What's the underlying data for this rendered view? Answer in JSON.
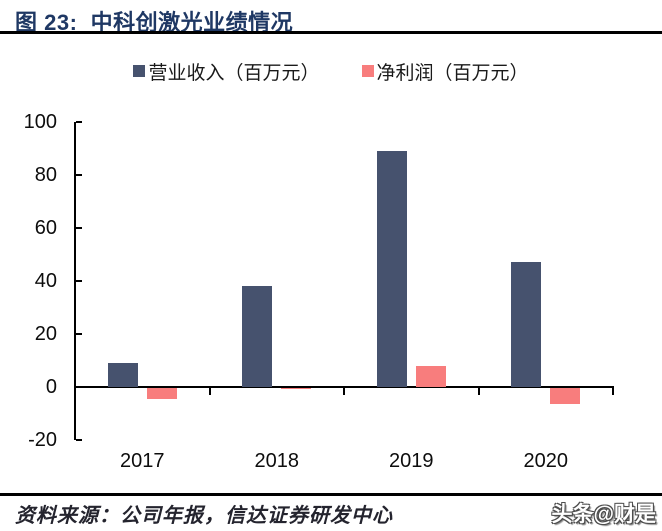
{
  "header": {
    "title": "图 23:  中科创激光业绩情况"
  },
  "chart_data": {
    "type": "bar",
    "title": "",
    "categories": [
      "2017",
      "2018",
      "2019",
      "2020"
    ],
    "series": [
      {
        "key": "revenue",
        "name": "营业收入（百万元）",
        "color": "#46526E",
        "values": [
          9,
          38,
          89,
          47
        ]
      },
      {
        "key": "net-profit",
        "name": "净利润（百万元）",
        "color": "#F87D7D",
        "values": [
          -4,
          -0.4,
          8,
          -6
        ]
      }
    ],
    "xlabel": "",
    "ylabel": "",
    "ylim": [
      -20,
      100
    ],
    "ytick_step": 20,
    "yticks": [
      100,
      80,
      60,
      40,
      20,
      0,
      -20
    ],
    "grid": false,
    "legend_position": "top"
  },
  "footer": {
    "source": "资料来源：公司年报，信达证券研发中心",
    "watermark": "头条@财是"
  },
  "colors": {
    "title": "#1F3864",
    "axis": "#000000",
    "tick_label": "#0d0d0d"
  }
}
